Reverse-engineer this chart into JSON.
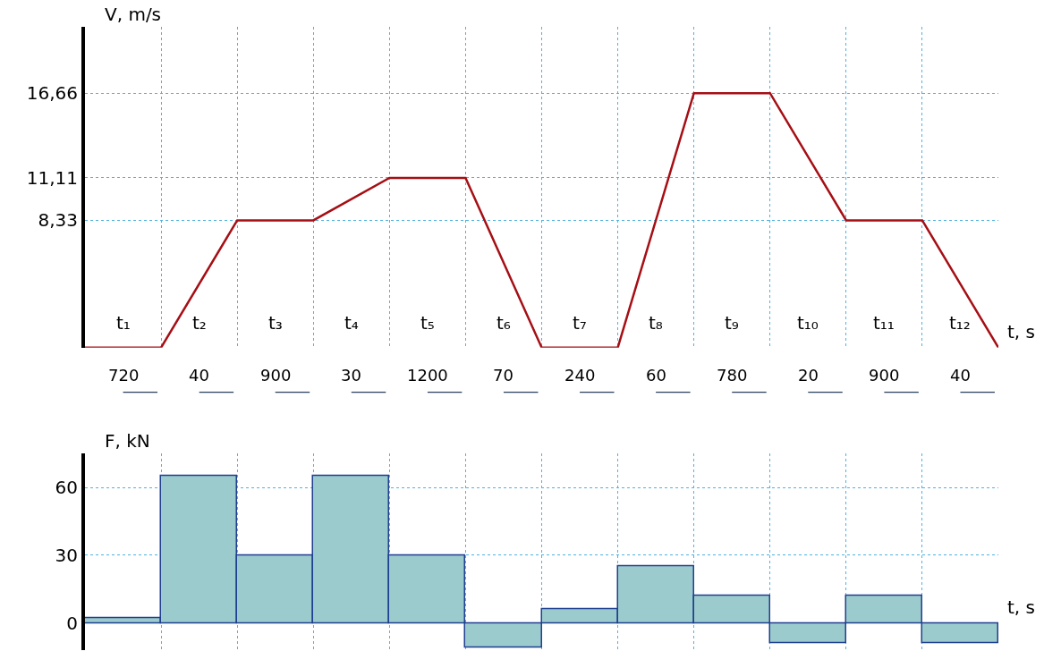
{
  "chart_data": [
    {
      "type": "line",
      "xlabel": "t, s",
      "ylabel": "V, m/s",
      "categories": [
        null,
        null,
        null,
        null,
        null,
        null,
        null,
        null,
        null,
        null,
        null,
        null,
        null
      ],
      "series": [
        {
          "color": "#a50f15",
          "values": [
            0,
            0,
            8.33,
            8.33,
            11.11,
            11.11,
            0,
            0,
            16.66,
            16.66,
            8.33,
            8.33,
            0
          ]
        }
      ],
      "ylim": [
        0,
        21
      ],
      "yticks": [
        {
          "value": 8.33,
          "label": "8,33"
        },
        {
          "value": 11.11,
          "label": "11,11"
        },
        {
          "value": 16.66,
          "label": "16,66"
        }
      ],
      "grid": true,
      "marker": "none",
      "line_style": "solid",
      "tick_labels": "y",
      "annotations": [
        "t₁",
        "t₂",
        "t₃",
        "t₄",
        "t₅",
        "t₆",
        "t₇",
        "t₈",
        "t₉",
        "t₁₀",
        "t₁₁",
        "t₁₂",
        "720",
        "40",
        "900",
        "30",
        "1200",
        "70",
        "240",
        "60",
        "780",
        "20",
        "900",
        "40"
      ]
    },
    {
      "type": "bar",
      "xlabel": "t, s",
      "ylabel": "F, kN",
      "categories": [
        null,
        null,
        null,
        null,
        null,
        null,
        null,
        null,
        null,
        null,
        null,
        null
      ],
      "series": [
        {
          "color": "#9ccbcd",
          "values": [
            2,
            65,
            30,
            65,
            30,
            -11,
            6,
            25,
            12,
            -9,
            12,
            -9
          ]
        }
      ],
      "ylim": [
        -12,
        75
      ],
      "yticks": [
        0,
        30,
        60
      ],
      "grid": true,
      "tick_labels": "y"
    }
  ]
}
